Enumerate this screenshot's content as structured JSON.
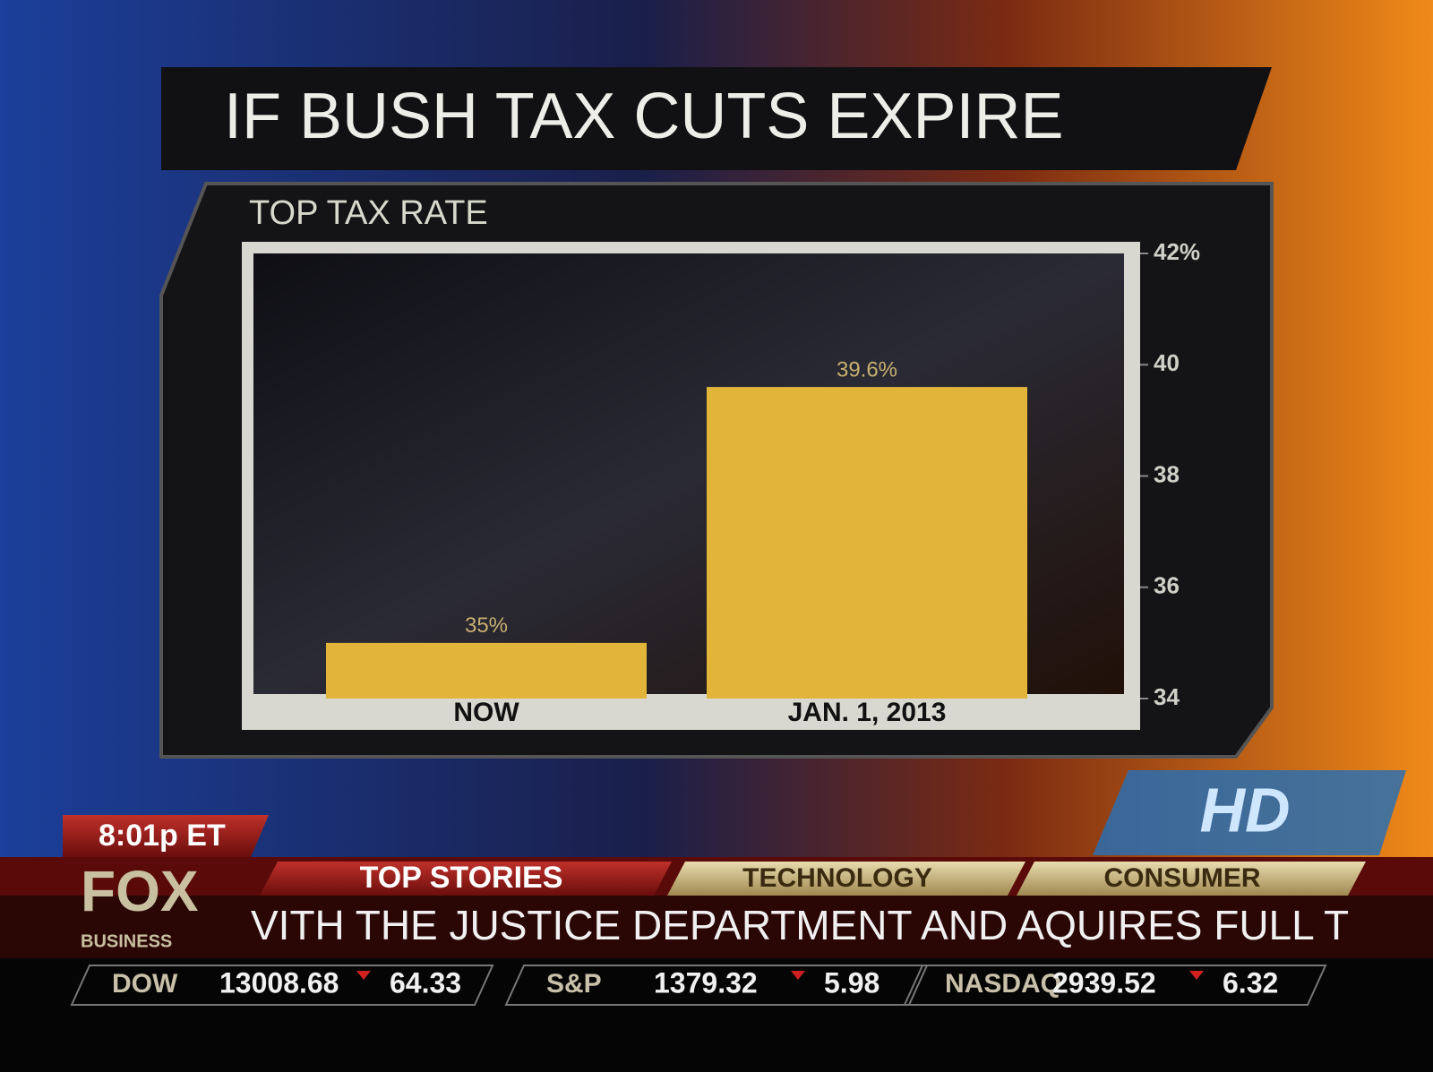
{
  "chart_data": {
    "type": "bar",
    "title": "IF BUSH TAX CUTS EXPIRE",
    "subtitle": "TOP TAX RATE",
    "categories": [
      "NOW",
      "JAN. 1, 2013"
    ],
    "values": [
      35,
      39.6
    ],
    "value_labels": [
      "35%",
      "39.6%"
    ],
    "color": "#e2b53a",
    "ylim": [
      34,
      42
    ],
    "yticks": [
      34,
      36,
      38,
      40,
      {
        "value": 42,
        "label": "42%"
      }
    ],
    "grid": false
  },
  "broadcast": {
    "time": "8:01p ET",
    "logo": "FOX",
    "logo_sub": "BUSINESS",
    "hd_badge": "HD",
    "tabs": [
      "TOP STORIES",
      "TECHNOLOGY",
      "CONSUMER"
    ],
    "crawl": "VITH THE JUSTICE DEPARTMENT AND AQUIRES FULL T",
    "stocks": [
      {
        "name": "DOW",
        "price": "13008.68",
        "change": "64.33"
      },
      {
        "name": "S&P",
        "price": "1379.32",
        "change": "5.98"
      },
      {
        "name": "NASDAQ",
        "price": "2939.52",
        "change": "6.32"
      }
    ]
  }
}
